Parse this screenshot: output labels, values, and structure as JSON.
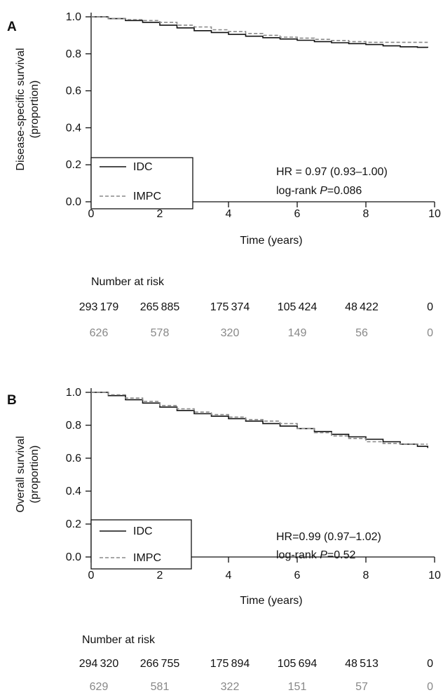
{
  "chart_data": [
    {
      "panel": "A",
      "type": "line",
      "ylabel": "Disease-specific survival (proportion)",
      "xlabel": "Time (years)",
      "xlim": [
        0,
        10
      ],
      "ylim": [
        0,
        1
      ],
      "xticks": [
        0,
        2,
        4,
        6,
        8,
        10
      ],
      "yticks": [
        0.0,
        0.2,
        0.4,
        0.6,
        0.8,
        1.0
      ],
      "legend_position": "bottom-left",
      "series": [
        {
          "name": "IDC",
          "color": "#111111",
          "dash": "solid",
          "x": [
            0,
            0.5,
            1,
            1.5,
            2,
            2.5,
            3,
            3.5,
            4,
            4.5,
            5,
            5.5,
            6,
            6.5,
            7,
            7.5,
            8,
            8.5,
            9,
            9.5,
            9.8
          ],
          "y": [
            1.0,
            0.99,
            0.98,
            0.97,
            0.955,
            0.94,
            0.925,
            0.915,
            0.905,
            0.895,
            0.887,
            0.88,
            0.873,
            0.866,
            0.86,
            0.855,
            0.85,
            0.843,
            0.838,
            0.835,
            0.833
          ]
        },
        {
          "name": "IMPC",
          "color": "#888888",
          "dash": "dashed",
          "x": [
            0,
            0.5,
            1,
            1.5,
            2,
            2.5,
            3,
            3.5,
            4,
            4.5,
            5,
            5.5,
            6,
            6.5,
            7,
            7.5,
            8,
            8.5,
            9,
            9.5,
            9.8
          ],
          "y": [
            1.0,
            0.99,
            0.985,
            0.98,
            0.97,
            0.955,
            0.945,
            0.93,
            0.92,
            0.91,
            0.9,
            0.89,
            0.885,
            0.878,
            0.872,
            0.866,
            0.862,
            0.862,
            0.862,
            0.862,
            0.862
          ]
        }
      ],
      "annotation": {
        "hr": "HR = 0.97 (0.93–1.00)",
        "logrank_prefix": "log-rank ",
        "p_symbol": "P",
        "p_value": "=0.086"
      },
      "risk_table": {
        "title": "Number at risk",
        "rows": [
          {
            "series": "IDC",
            "color": "#111111",
            "values": [
              "293 179",
              "265 885",
              "175 374",
              "105 424",
              "48 422",
              "0"
            ]
          },
          {
            "series": "IMPC",
            "color": "#888888",
            "values": [
              "626",
              "578",
              "320",
              "149",
              "56",
              "0"
            ]
          }
        ]
      }
    },
    {
      "panel": "B",
      "type": "line",
      "ylabel": "Overall survival (proportion)",
      "xlabel": "Time (years)",
      "xlim": [
        0,
        10
      ],
      "ylim": [
        0,
        1
      ],
      "xticks": [
        0,
        2,
        4,
        6,
        8,
        10
      ],
      "yticks": [
        0.0,
        0.2,
        0.4,
        0.6,
        0.8,
        1.0
      ],
      "legend_position": "bottom-left",
      "series": [
        {
          "name": "IDC",
          "color": "#111111",
          "dash": "solid",
          "x": [
            0,
            0.5,
            1,
            1.5,
            2,
            2.5,
            3,
            3.5,
            4,
            4.5,
            5,
            5.5,
            6,
            6.5,
            7,
            7.5,
            8,
            8.5,
            9,
            9.5,
            9.8
          ],
          "y": [
            1.0,
            0.98,
            0.955,
            0.935,
            0.91,
            0.89,
            0.87,
            0.855,
            0.84,
            0.825,
            0.81,
            0.795,
            0.78,
            0.762,
            0.745,
            0.73,
            0.715,
            0.7,
            0.685,
            0.672,
            0.662
          ]
        },
        {
          "name": "IMPC",
          "color": "#888888",
          "dash": "dashed",
          "x": [
            0,
            0.5,
            1,
            1.5,
            2,
            2.5,
            3,
            3.5,
            4,
            4.5,
            5,
            5.5,
            6,
            6.5,
            7,
            7.5,
            8,
            8.5,
            9,
            9.5,
            9.8
          ],
          "y": [
            1.0,
            0.985,
            0.965,
            0.945,
            0.92,
            0.9,
            0.88,
            0.865,
            0.85,
            0.835,
            0.825,
            0.81,
            0.78,
            0.755,
            0.735,
            0.72,
            0.7,
            0.69,
            0.685,
            0.685,
            0.685
          ]
        }
      ],
      "annotation": {
        "hr": "HR=0.99 (0.97–1.02)",
        "logrank_prefix": "log-rank ",
        "p_symbol": "P",
        "p_value": "=0.52"
      },
      "risk_table": {
        "title": "Number at risk",
        "rows": [
          {
            "series": "IDC",
            "color": "#111111",
            "values": [
              "294 320",
              "266 755",
              "175 894",
              "105 694",
              "48 513",
              "0"
            ]
          },
          {
            "series": "IMPC",
            "color": "#888888",
            "values": [
              "629",
              "581",
              "322",
              "151",
              "57",
              "0"
            ]
          }
        ]
      }
    }
  ]
}
